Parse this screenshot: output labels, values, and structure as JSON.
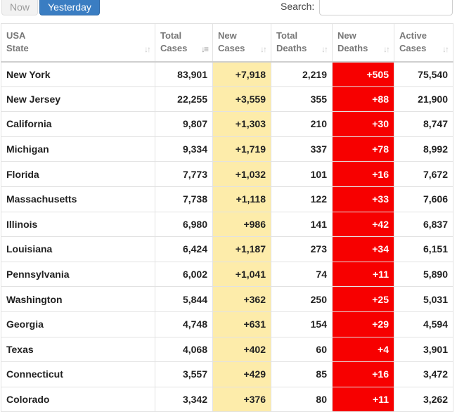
{
  "tabs": {
    "now_label": "Now",
    "yesterday_label": "Yesterday"
  },
  "search": {
    "label": "Search:",
    "value": "",
    "placeholder": ""
  },
  "colors": {
    "new_cases_bg": "#fdecaa",
    "new_deaths_bg": "#f70000",
    "active_tab_bg": "#3a7dc2"
  },
  "table": {
    "headers": [
      {
        "line1": "USA",
        "line2": "State",
        "sort": "sort-icon"
      },
      {
        "line1": "Total",
        "line2": "Cases",
        "sort": "sort-desc-icon"
      },
      {
        "line1": "New",
        "line2": "Cases",
        "sort": "sort-icon"
      },
      {
        "line1": "Total",
        "line2": "Deaths",
        "sort": "sort-icon"
      },
      {
        "line1": "New",
        "line2": "Deaths",
        "sort": "sort-icon"
      },
      {
        "line1": "Active",
        "line2": "Cases",
        "sort": "sort-icon"
      }
    ],
    "rows": [
      {
        "state": "New York",
        "total_cases": "83,901",
        "new_cases": "+7,918",
        "total_deaths": "2,219",
        "new_deaths": "+505",
        "active_cases": "75,540"
      },
      {
        "state": "New Jersey",
        "total_cases": "22,255",
        "new_cases": "+3,559",
        "total_deaths": "355",
        "new_deaths": "+88",
        "active_cases": "21,900"
      },
      {
        "state": "California",
        "total_cases": "9,807",
        "new_cases": "+1,303",
        "total_deaths": "210",
        "new_deaths": "+30",
        "active_cases": "8,747"
      },
      {
        "state": "Michigan",
        "total_cases": "9,334",
        "new_cases": "+1,719",
        "total_deaths": "337",
        "new_deaths": "+78",
        "active_cases": "8,992"
      },
      {
        "state": "Florida",
        "total_cases": "7,773",
        "new_cases": "+1,032",
        "total_deaths": "101",
        "new_deaths": "+16",
        "active_cases": "7,672"
      },
      {
        "state": "Massachusetts",
        "total_cases": "7,738",
        "new_cases": "+1,118",
        "total_deaths": "122",
        "new_deaths": "+33",
        "active_cases": "7,606"
      },
      {
        "state": "Illinois",
        "total_cases": "6,980",
        "new_cases": "+986",
        "total_deaths": "141",
        "new_deaths": "+42",
        "active_cases": "6,837"
      },
      {
        "state": "Louisiana",
        "total_cases": "6,424",
        "new_cases": "+1,187",
        "total_deaths": "273",
        "new_deaths": "+34",
        "active_cases": "6,151"
      },
      {
        "state": "Pennsylvania",
        "total_cases": "6,002",
        "new_cases": "+1,041",
        "total_deaths": "74",
        "new_deaths": "+11",
        "active_cases": "5,890"
      },
      {
        "state": "Washington",
        "total_cases": "5,844",
        "new_cases": "+362",
        "total_deaths": "250",
        "new_deaths": "+25",
        "active_cases": "5,031"
      },
      {
        "state": "Georgia",
        "total_cases": "4,748",
        "new_cases": "+631",
        "total_deaths": "154",
        "new_deaths": "+29",
        "active_cases": "4,594"
      },
      {
        "state": "Texas",
        "total_cases": "4,068",
        "new_cases": "+402",
        "total_deaths": "60",
        "new_deaths": "+4",
        "active_cases": "3,901"
      },
      {
        "state": "Connecticut",
        "total_cases": "3,557",
        "new_cases": "+429",
        "total_deaths": "85",
        "new_deaths": "+16",
        "active_cases": "3,472"
      },
      {
        "state": "Colorado",
        "total_cases": "3,342",
        "new_cases": "+376",
        "total_deaths": "80",
        "new_deaths": "+11",
        "active_cases": "3,262"
      }
    ]
  }
}
